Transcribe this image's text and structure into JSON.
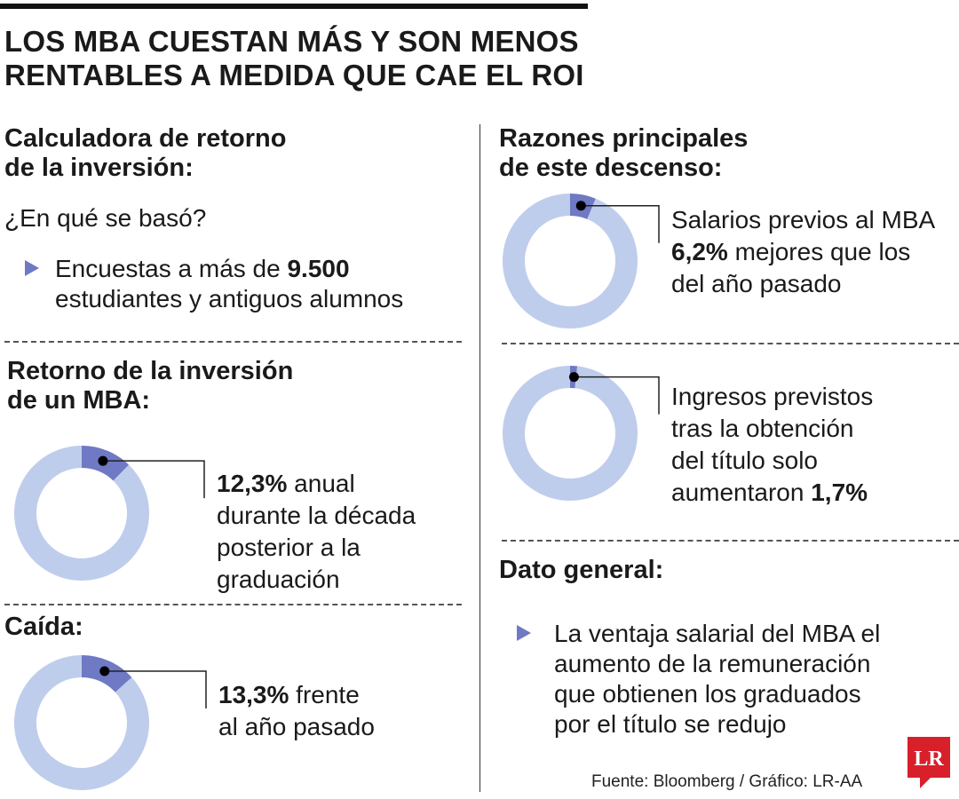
{
  "title_lines": [
    "LOS MBA CUESTAN MÁS Y SON MENOS",
    "RENTABLES A MEDIDA QUE CAE EL ROI"
  ],
  "left": {
    "calc_title_lines": [
      "Calculadora de retorno",
      "de la inversión:"
    ],
    "question": "¿En qué se basó?",
    "survey": {
      "pre": "Encuestas a más de ",
      "number": "9.500",
      "line2": "estudiantes y antiguos alumnos"
    },
    "roi_title_lines": [
      "Retorno de la inversión",
      "de un MBA:"
    ],
    "roi_text": {
      "value": "12,3%",
      "line1_rest": " anual",
      "lines": [
        "durante la década",
        "posterior a la",
        "graduación"
      ]
    },
    "fall_title": "Caída:",
    "fall_text": {
      "value": "13,3%",
      "line1_rest": " frente",
      "line2": "al año pasado"
    }
  },
  "right": {
    "reasons_title_lines": [
      "Razones principales",
      "de este descenso:"
    ],
    "salary_text": {
      "line1": "Salarios previos al MBA",
      "value": "6,2%",
      "line2_rest": " mejores que los",
      "line3": "del año pasado"
    },
    "income_text": {
      "lines": [
        "Ingresos previstos",
        "tras la obtención",
        "del título solo"
      ],
      "line4_pre": "aumentaron ",
      "value": "1,7%"
    },
    "general_title": "Dato general:",
    "general_lines": [
      "La ventaja salarial del MBA el",
      "aumento de la remuneración",
      "que obtienen los graduados",
      "por el título se redujo"
    ]
  },
  "source": "Fuente: Bloomberg / Gráfico: LR-AA",
  "logo_text": "LR",
  "colors": {
    "ring": "#bfcdec",
    "highlight": "#6f79c4",
    "logo": "#d8202a",
    "bullet": "#6f79c4"
  },
  "chart_data": [
    {
      "type": "pie",
      "name": "roi",
      "values": [
        12.3,
        87.7
      ],
      "labels": [
        "12,3%",
        ""
      ]
    },
    {
      "type": "pie",
      "name": "fall",
      "values": [
        13.3,
        86.7
      ],
      "labels": [
        "13,3%",
        ""
      ]
    },
    {
      "type": "pie",
      "name": "salary",
      "values": [
        6.2,
        93.8
      ],
      "labels": [
        "6,2%",
        ""
      ]
    },
    {
      "type": "pie",
      "name": "income",
      "values": [
        1.7,
        98.3
      ],
      "labels": [
        "1,7%",
        ""
      ]
    }
  ]
}
